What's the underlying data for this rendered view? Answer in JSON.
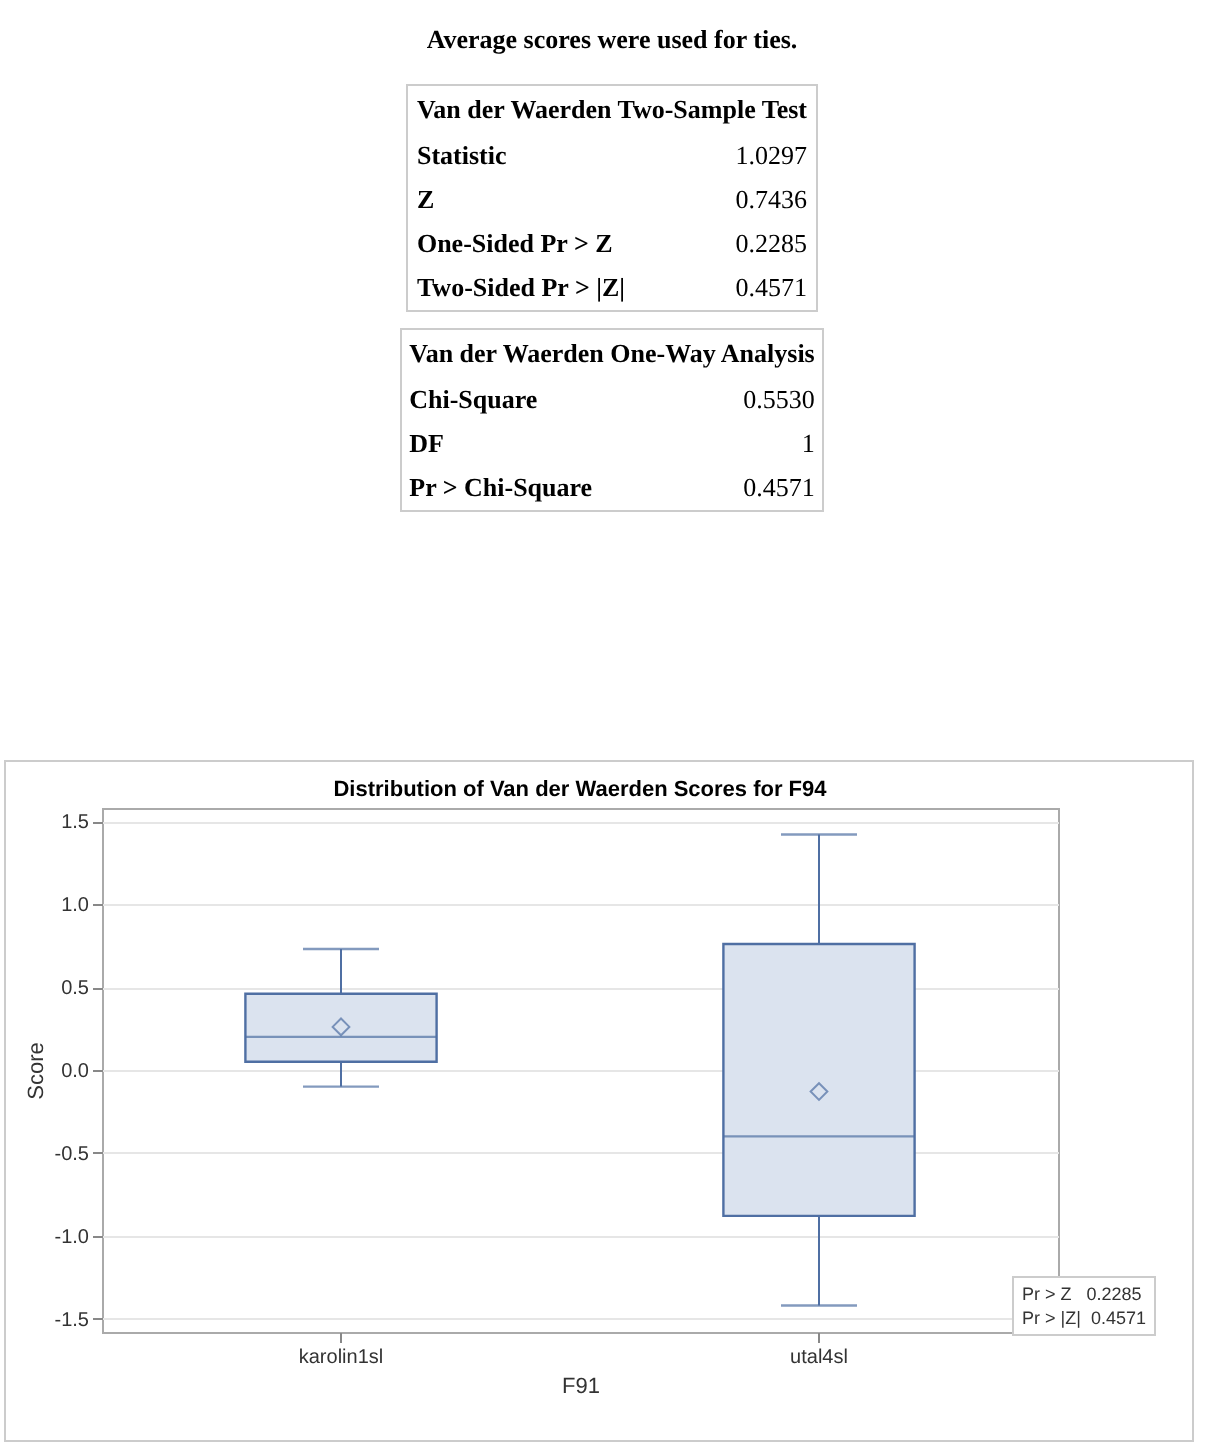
{
  "chart_data": [
    {
      "type": "other",
      "title": "Van der Waerden Two-Sample Test",
      "annotations": [
        "Average scores were used for ties."
      ],
      "categories": [
        "Statistic",
        "Z",
        "One-Sided Pr > Z",
        "Two-Sided Pr > |Z|"
      ],
      "value_labels": [
        "1.0297",
        "0.7436",
        "0.2285",
        "0.4571"
      ]
    },
    {
      "type": "other",
      "title": "Van der Waerden One-Way Analysis",
      "categories": [
        "Chi-Square",
        "DF",
        "Pr > Chi-Square"
      ],
      "value_labels": [
        "0.5530",
        "1",
        "0.4571"
      ]
    },
    {
      "type": "box",
      "title": "Distribution of Van der Waerden Scores for F94",
      "xlabel": "F91",
      "ylabel": "Score",
      "categories": [
        "karolin1sl",
        "utal4sl"
      ],
      "series": [
        {
          "color": "#4f6fa3",
          "boxes": [
            {
              "low": -0.1,
              "q1": 0.05,
              "median": 0.2,
              "q3": 0.46,
              "high": 0.73,
              "mean": 0.26
            },
            {
              "low": -1.42,
              "q1": -0.88,
              "median": -0.4,
              "q3": 0.76,
              "high": 1.42,
              "mean": -0.13
            }
          ]
        }
      ],
      "ylim": [
        -1.58,
        1.58
      ],
      "yticks": [
        {
          "value": -1.5,
          "label": "-1.5"
        },
        {
          "value": -1,
          "label": "-1.0"
        },
        {
          "value": -0.5,
          "label": "-0.5"
        },
        {
          "value": 0,
          "label": "0.0"
        },
        {
          "value": 0.5,
          "label": "0.5"
        },
        {
          "value": 1,
          "label": "1.0"
        },
        {
          "value": 1.5,
          "label": "1.5"
        }
      ],
      "grid": "y",
      "marker": "diamond",
      "annotations": [
        "Pr > Z   0.2285",
        "Pr > |Z|  0.4571"
      ]
    }
  ]
}
